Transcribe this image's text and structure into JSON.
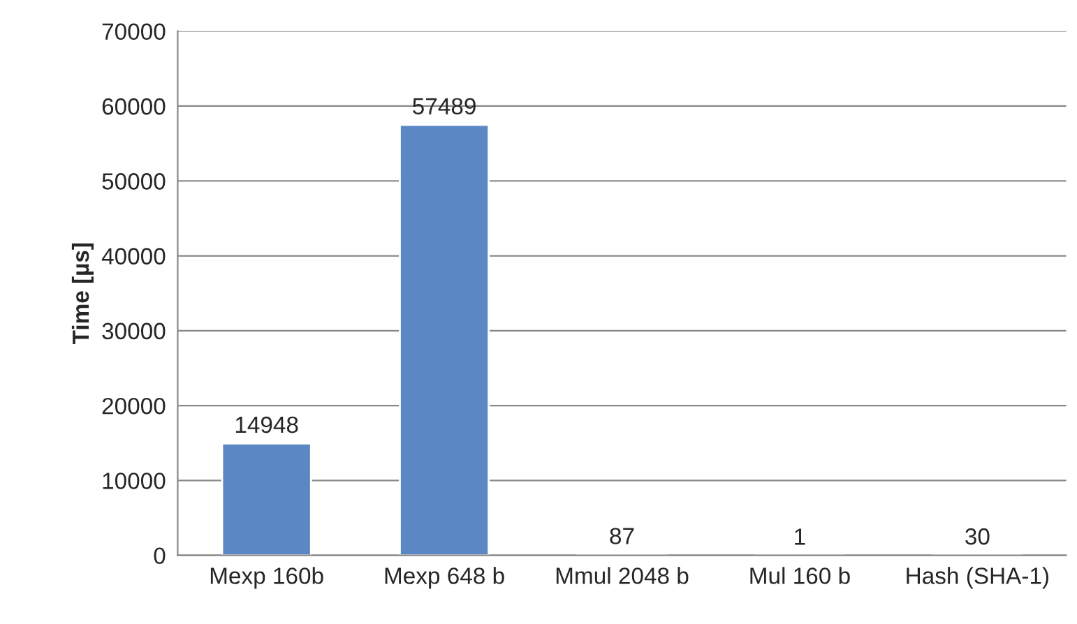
{
  "chart_data": {
    "type": "bar",
    "ylabel": "Time [µs]",
    "categories": [
      "Mexp 160b",
      "Mexp 648 b",
      "Mmul 2048 b",
      "Mul 160 b",
      "Hash (SHA-1)"
    ],
    "values": [
      14948,
      57489,
      87,
      1,
      30
    ],
    "color": "#5b87c5",
    "ylim": [
      0,
      70000
    ],
    "yticks": [
      0,
      10000,
      20000,
      30000,
      40000,
      50000,
      60000,
      70000
    ],
    "grid": "y",
    "data_labels": true
  }
}
